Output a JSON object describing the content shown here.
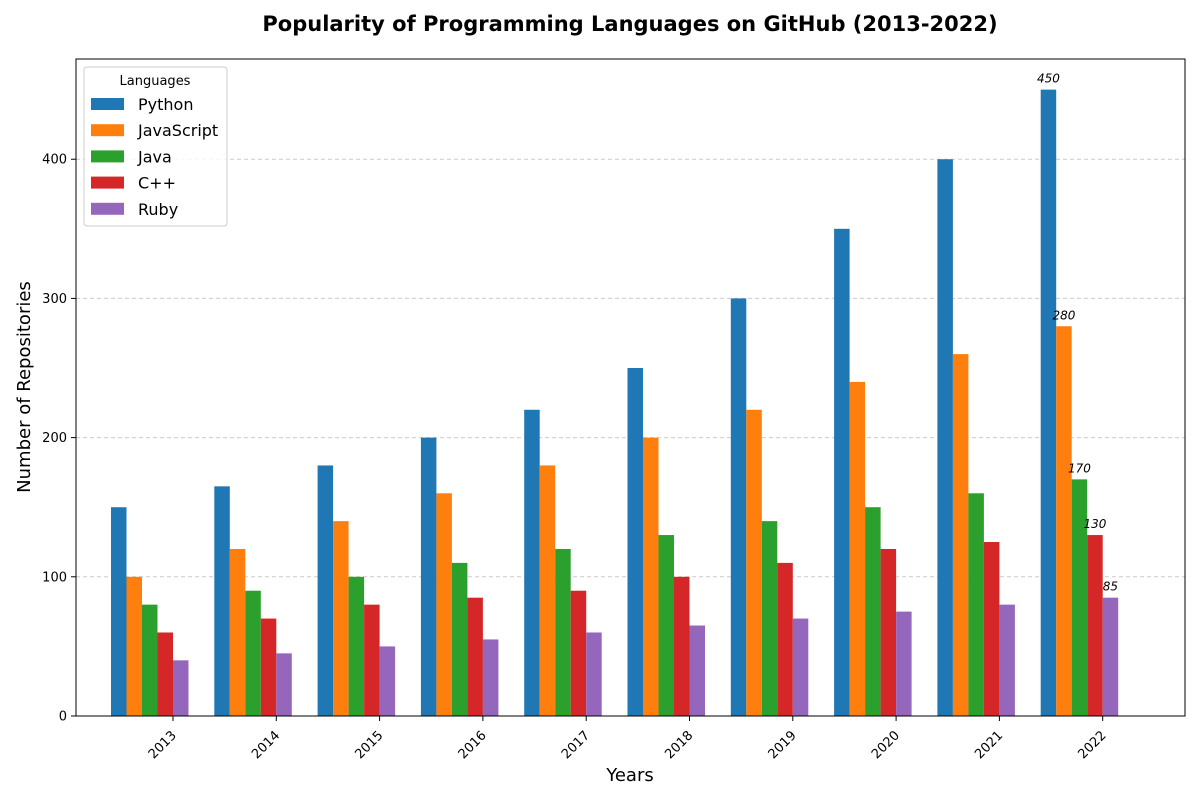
{
  "chart_data": {
    "type": "bar",
    "title": "Popularity of Programming Languages on GitHub (2013-2022)",
    "xlabel": "Years",
    "ylabel": "Number of Repositories",
    "categories": [
      "2013",
      "2014",
      "2015",
      "2016",
      "2017",
      "2018",
      "2019",
      "2020",
      "2021",
      "2022"
    ],
    "series": [
      {
        "name": "Python",
        "color": "#1f77b4",
        "values": [
          150,
          165,
          180,
          200,
          220,
          250,
          300,
          350,
          400,
          450
        ]
      },
      {
        "name": "JavaScript",
        "color": "#ff7f0e",
        "values": [
          100,
          120,
          140,
          160,
          180,
          200,
          220,
          240,
          260,
          280
        ]
      },
      {
        "name": "Java",
        "color": "#2ca02c",
        "values": [
          80,
          90,
          100,
          110,
          120,
          130,
          140,
          150,
          160,
          170
        ]
      },
      {
        "name": "C++",
        "color": "#d62728",
        "values": [
          60,
          70,
          80,
          85,
          90,
          100,
          110,
          120,
          125,
          130
        ]
      },
      {
        "name": "Ruby",
        "color": "#9467bd",
        "values": [
          40,
          45,
          50,
          55,
          60,
          65,
          70,
          75,
          80,
          85
        ]
      }
    ],
    "ylim": [
      0,
      472
    ],
    "yticks": [
      0,
      100,
      200,
      300,
      400
    ],
    "grid": true,
    "legend": {
      "title": "Languages",
      "placement": "top-left"
    },
    "annotations": [
      {
        "category": "2022",
        "series": "Python",
        "text": "450"
      },
      {
        "category": "2022",
        "series": "JavaScript",
        "text": "280"
      },
      {
        "category": "2022",
        "series": "Java",
        "text": "170"
      },
      {
        "category": "2022",
        "series": "C++",
        "text": "130"
      },
      {
        "category": "2022",
        "series": "Ruby",
        "text": "85"
      }
    ]
  }
}
